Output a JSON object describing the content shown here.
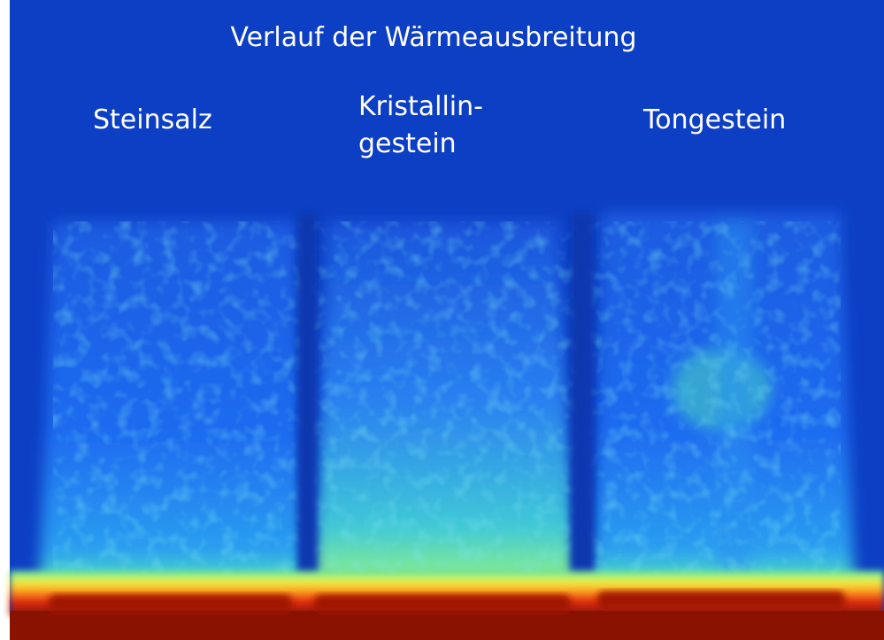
{
  "title": "Verlauf der Wärmeausbreitung",
  "samples": [
    {
      "lines": [
        "Steinsalz"
      ]
    },
    {
      "lines": [
        "Kristallin-",
        "gestein"
      ]
    },
    {
      "lines": [
        "Tongestein"
      ]
    }
  ]
}
